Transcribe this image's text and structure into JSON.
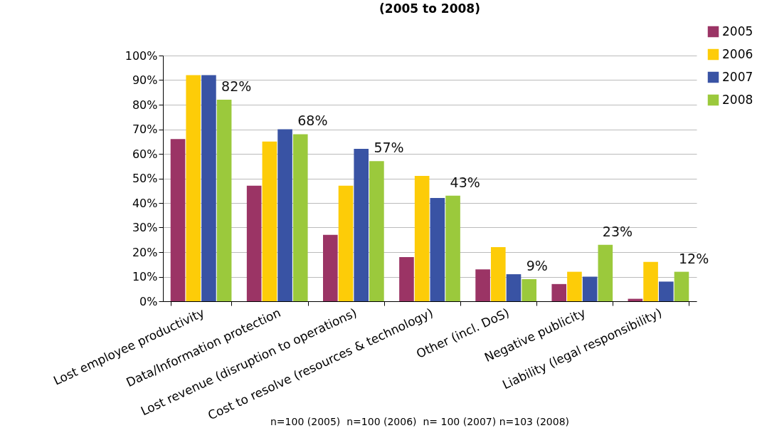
{
  "chart_data": {
    "type": "bar",
    "title": "(2005 to 2008)",
    "categories": [
      "Lost employee productivity",
      "Data/Information protection",
      "Lost revenue (disruption to operations)",
      "Cost to resolve (resources & technology)",
      "Other (incl. DoS)",
      "Negative publicity",
      "Liability (legal responsibility)"
    ],
    "series": [
      {
        "name": "2005",
        "color": "#9b3465",
        "values": [
          66,
          47,
          27,
          18,
          13,
          7,
          1
        ]
      },
      {
        "name": "2006",
        "color": "#fdcc08",
        "values": [
          92,
          65,
          47,
          51,
          22,
          12,
          16
        ]
      },
      {
        "name": "2007",
        "color": "#3953a4",
        "values": [
          92,
          70,
          62,
          42,
          11,
          10,
          8
        ]
      },
      {
        "name": "2008",
        "color": "#9bc93c",
        "values": [
          82,
          68,
          57,
          43,
          9,
          23,
          12
        ],
        "value_labels": [
          "82%",
          "68%",
          "57%",
          "43%",
          "9%",
          "23%",
          "12%"
        ]
      }
    ],
    "ylim": [
      0,
      100
    ],
    "yticks": [
      {
        "value": 0,
        "label": "0%"
      },
      {
        "value": 10,
        "label": "10%"
      },
      {
        "value": 20,
        "label": "20%"
      },
      {
        "value": 30,
        "label": "30%"
      },
      {
        "value": 40,
        "label": "40%"
      },
      {
        "value": 50,
        "label": "50%"
      },
      {
        "value": 60,
        "label": "60%"
      },
      {
        "value": 70,
        "label": "70%"
      },
      {
        "value": 80,
        "label": "80%"
      },
      {
        "value": 90,
        "label": "90%"
      },
      {
        "value": 100,
        "label": "100%"
      }
    ],
    "grid": "y",
    "legend": "top right",
    "annotations": [
      "n=100 (2005)  n=100 (2006)  n= 100 (2007) n=103 (2008)"
    ]
  }
}
